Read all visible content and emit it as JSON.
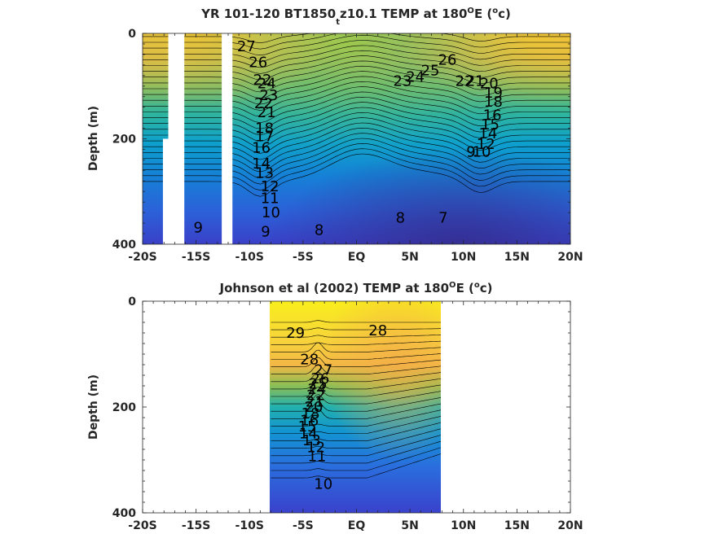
{
  "chart_data": [
    {
      "type": "heatmap",
      "title_prefix": "YR 101-120 BT1850",
      "title_subscript": "t",
      "title_mid": "z10.1 TEMP at 180",
      "title_deg": "O",
      "title_after_deg": "E (",
      "title_unit_deg": "o",
      "title_end": "c)",
      "xlabel": "",
      "ylabel": "Depth (m)",
      "xlim": [
        -20,
        20
      ],
      "ylim": [
        0,
        400
      ],
      "x_ticks": [
        -20,
        -15,
        -10,
        -5,
        0,
        5,
        10,
        15,
        20
      ],
      "x_tick_labels": [
        "-20S",
        "-15S",
        "-10S",
        "-5S",
        "EQ",
        "5N",
        "10N",
        "15N",
        "20N"
      ],
      "y_ticks": [
        0,
        200,
        400
      ],
      "y_tick_labels": [
        "0",
        "200",
        "400"
      ],
      "y_reversed": true,
      "masked_columns": [
        {
          "lat_range": [
            -17.6,
            -16.1
          ],
          "depth_range": [
            0,
            400
          ]
        },
        {
          "lat_range": [
            -18.1,
            -17.6
          ],
          "depth_range": [
            200,
            400
          ]
        },
        {
          "lat_range": [
            -12.6,
            -11.6
          ],
          "depth_range": [
            0,
            400
          ]
        }
      ],
      "contour_labels": [
        {
          "text": "27",
          "lat": -10.3,
          "depth": 25
        },
        {
          "text": "26",
          "lat": -9.2,
          "depth": 55
        },
        {
          "text": "22",
          "lat": -8.8,
          "depth": 88
        },
        {
          "text": "24",
          "lat": -8.4,
          "depth": 95
        },
        {
          "text": "23",
          "lat": -8.2,
          "depth": 117
        },
        {
          "text": "22",
          "lat": -8.7,
          "depth": 133
        },
        {
          "text": "21",
          "lat": -8.4,
          "depth": 150
        },
        {
          "text": "18",
          "lat": -8.6,
          "depth": 180
        },
        {
          "text": "17",
          "lat": -8.6,
          "depth": 195
        },
        {
          "text": "16",
          "lat": -8.9,
          "depth": 217
        },
        {
          "text": "14",
          "lat": -8.9,
          "depth": 247
        },
        {
          "text": "13",
          "lat": -8.6,
          "depth": 265
        },
        {
          "text": "12",
          "lat": -8.1,
          "depth": 290
        },
        {
          "text": "11",
          "lat": -8.1,
          "depth": 313
        },
        {
          "text": "10",
          "lat": -8.0,
          "depth": 340
        },
        {
          "text": "9",
          "lat": -8.5,
          "depth": 376
        },
        {
          "text": "9",
          "lat": -14.8,
          "depth": 368
        },
        {
          "text": "8",
          "lat": -3.5,
          "depth": 373
        },
        {
          "text": "8",
          "lat": 4.1,
          "depth": 350
        },
        {
          "text": "7",
          "lat": 8.1,
          "depth": 350
        },
        {
          "text": "23",
          "lat": 4.3,
          "depth": 90
        },
        {
          "text": "24",
          "lat": 5.5,
          "depth": 83
        },
        {
          "text": "25",
          "lat": 6.9,
          "depth": 70
        },
        {
          "text": "26",
          "lat": 8.5,
          "depth": 50
        },
        {
          "text": "22",
          "lat": 10.1,
          "depth": 90
        },
        {
          "text": "21",
          "lat": 11.1,
          "depth": 90
        },
        {
          "text": "20",
          "lat": 12.4,
          "depth": 95
        },
        {
          "text": "19",
          "lat": 12.8,
          "depth": 113
        },
        {
          "text": "18",
          "lat": 12.8,
          "depth": 130
        },
        {
          "text": "16",
          "lat": 12.7,
          "depth": 155
        },
        {
          "text": "15",
          "lat": 12.5,
          "depth": 173
        },
        {
          "text": "14",
          "lat": 12.3,
          "depth": 190
        },
        {
          "text": "12",
          "lat": 12.1,
          "depth": 210
        },
        {
          "text": "9",
          "lat": 10.7,
          "depth": 225
        },
        {
          "text": "10",
          "lat": 11.7,
          "depth": 225
        }
      ]
    },
    {
      "type": "heatmap",
      "title_prefix": "Johnson et al (2002) TEMP at 180",
      "title_deg": "O",
      "title_after_deg": "E (",
      "title_unit_deg": "o",
      "title_end": "c)",
      "xlabel": "",
      "ylabel": "Depth (m)",
      "xlim": [
        -20,
        20
      ],
      "ylim": [
        0,
        400
      ],
      "x_ticks": [
        -20,
        -15,
        -10,
        -5,
        0,
        5,
        10,
        15,
        20
      ],
      "x_tick_labels": [
        "-20S",
        "-15S",
        "-10S",
        "-5S",
        "EQ",
        "5N",
        "10N",
        "15N",
        "20N"
      ],
      "y_ticks": [
        0,
        200,
        400
      ],
      "y_tick_labels": [
        "0",
        "200",
        "400"
      ],
      "y_reversed": true,
      "data_lat_range": [
        -8,
        8
      ],
      "contour_labels": [
        {
          "text": "29",
          "lat": -5.7,
          "depth": 60
        },
        {
          "text": "28",
          "lat": 2.0,
          "depth": 55
        },
        {
          "text": "28",
          "lat": -4.4,
          "depth": 110
        },
        {
          "text": "27",
          "lat": -3.1,
          "depth": 130
        },
        {
          "text": "26",
          "lat": -3.4,
          "depth": 146
        },
        {
          "text": "25",
          "lat": -3.6,
          "depth": 156
        },
        {
          "text": "24",
          "lat": -3.7,
          "depth": 166
        },
        {
          "text": "22",
          "lat": -3.8,
          "depth": 178
        },
        {
          "text": "21",
          "lat": -3.9,
          "depth": 190
        },
        {
          "text": "20",
          "lat": -4.0,
          "depth": 200
        },
        {
          "text": "18",
          "lat": -4.3,
          "depth": 212
        },
        {
          "text": "16",
          "lat": -4.4,
          "depth": 225
        },
        {
          "text": "15",
          "lat": -4.6,
          "depth": 237
        },
        {
          "text": "14",
          "lat": -4.5,
          "depth": 250
        },
        {
          "text": "13",
          "lat": -4.2,
          "depth": 263
        },
        {
          "text": "12",
          "lat": -3.8,
          "depth": 276
        },
        {
          "text": "11",
          "lat": -3.7,
          "depth": 293
        },
        {
          "text": "10",
          "lat": -3.1,
          "depth": 345
        }
      ]
    }
  ],
  "colors": {
    "colormap": "parula",
    "colormap_stops": [
      "#352a87",
      "#2d5fd8",
      "#1580d4",
      "#06a4ca",
      "#2bb7a1",
      "#86bf5d",
      "#d0ba43",
      "#f9c92f",
      "#f9fb0e"
    ],
    "mask": "#ffffff",
    "contour": "#000000"
  }
}
